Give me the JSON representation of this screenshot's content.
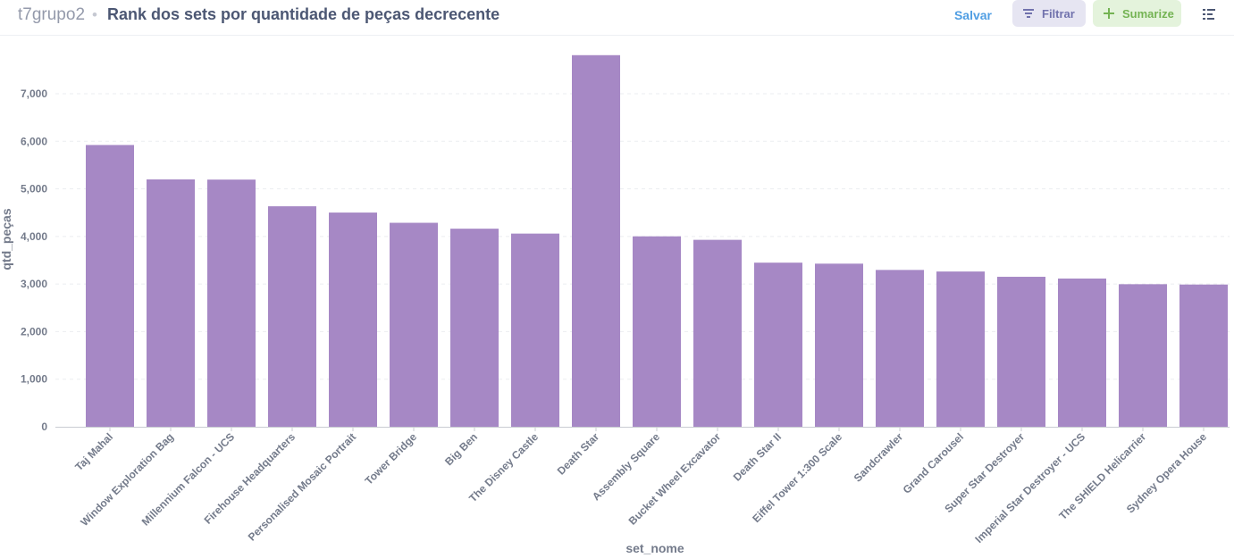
{
  "header": {
    "collection": "t7grupo2",
    "separator": "•",
    "title": "Rank dos sets por quantidade de peças decrecente",
    "save_label": "Salvar",
    "filter_label": "Filtrar",
    "summarize_label": "Sumarize"
  },
  "colors": {
    "bar": "#a688c5",
    "grid": "#ebedf0",
    "axis": "#c9ccd2"
  },
  "chart_data": {
    "type": "bar",
    "xlabel": "set_nome",
    "ylabel": "qtd_peças",
    "ylim": [
      0,
      7900
    ],
    "yticks": [
      0,
      1000,
      2000,
      3000,
      4000,
      5000,
      6000,
      7000
    ],
    "ytick_labels": [
      "0",
      "1,000",
      "2,000",
      "3,000",
      "4,000",
      "5,000",
      "6,000",
      "7,000"
    ],
    "grid": true,
    "categories": [
      "Taj Mahal",
      "Window Exploration Bag",
      "Millennium Falcon - UCS",
      "Firehouse Headquarters",
      "Personalised Mosaic Portrait",
      "Tower Bridge",
      "Big Ben",
      "The Disney Castle",
      "Death Star",
      "Assembly Square",
      "Bucket Wheel Excavator",
      "Death Star II",
      "Eiffel Tower 1:300 Scale",
      "Sandcrawler",
      "Grand Carousel",
      "Super Star Destroyer",
      "Imperial Star Destroyer - UCS",
      "The SHIELD Helicarrier",
      "Sydney Opera House"
    ],
    "values": [
      5922,
      5200,
      5195,
      4634,
      4502,
      4287,
      4163,
      4060,
      7810,
      4002,
      3929,
      3449,
      3428,
      3296,
      3263,
      3152,
      3115,
      2996,
      2989
    ]
  }
}
